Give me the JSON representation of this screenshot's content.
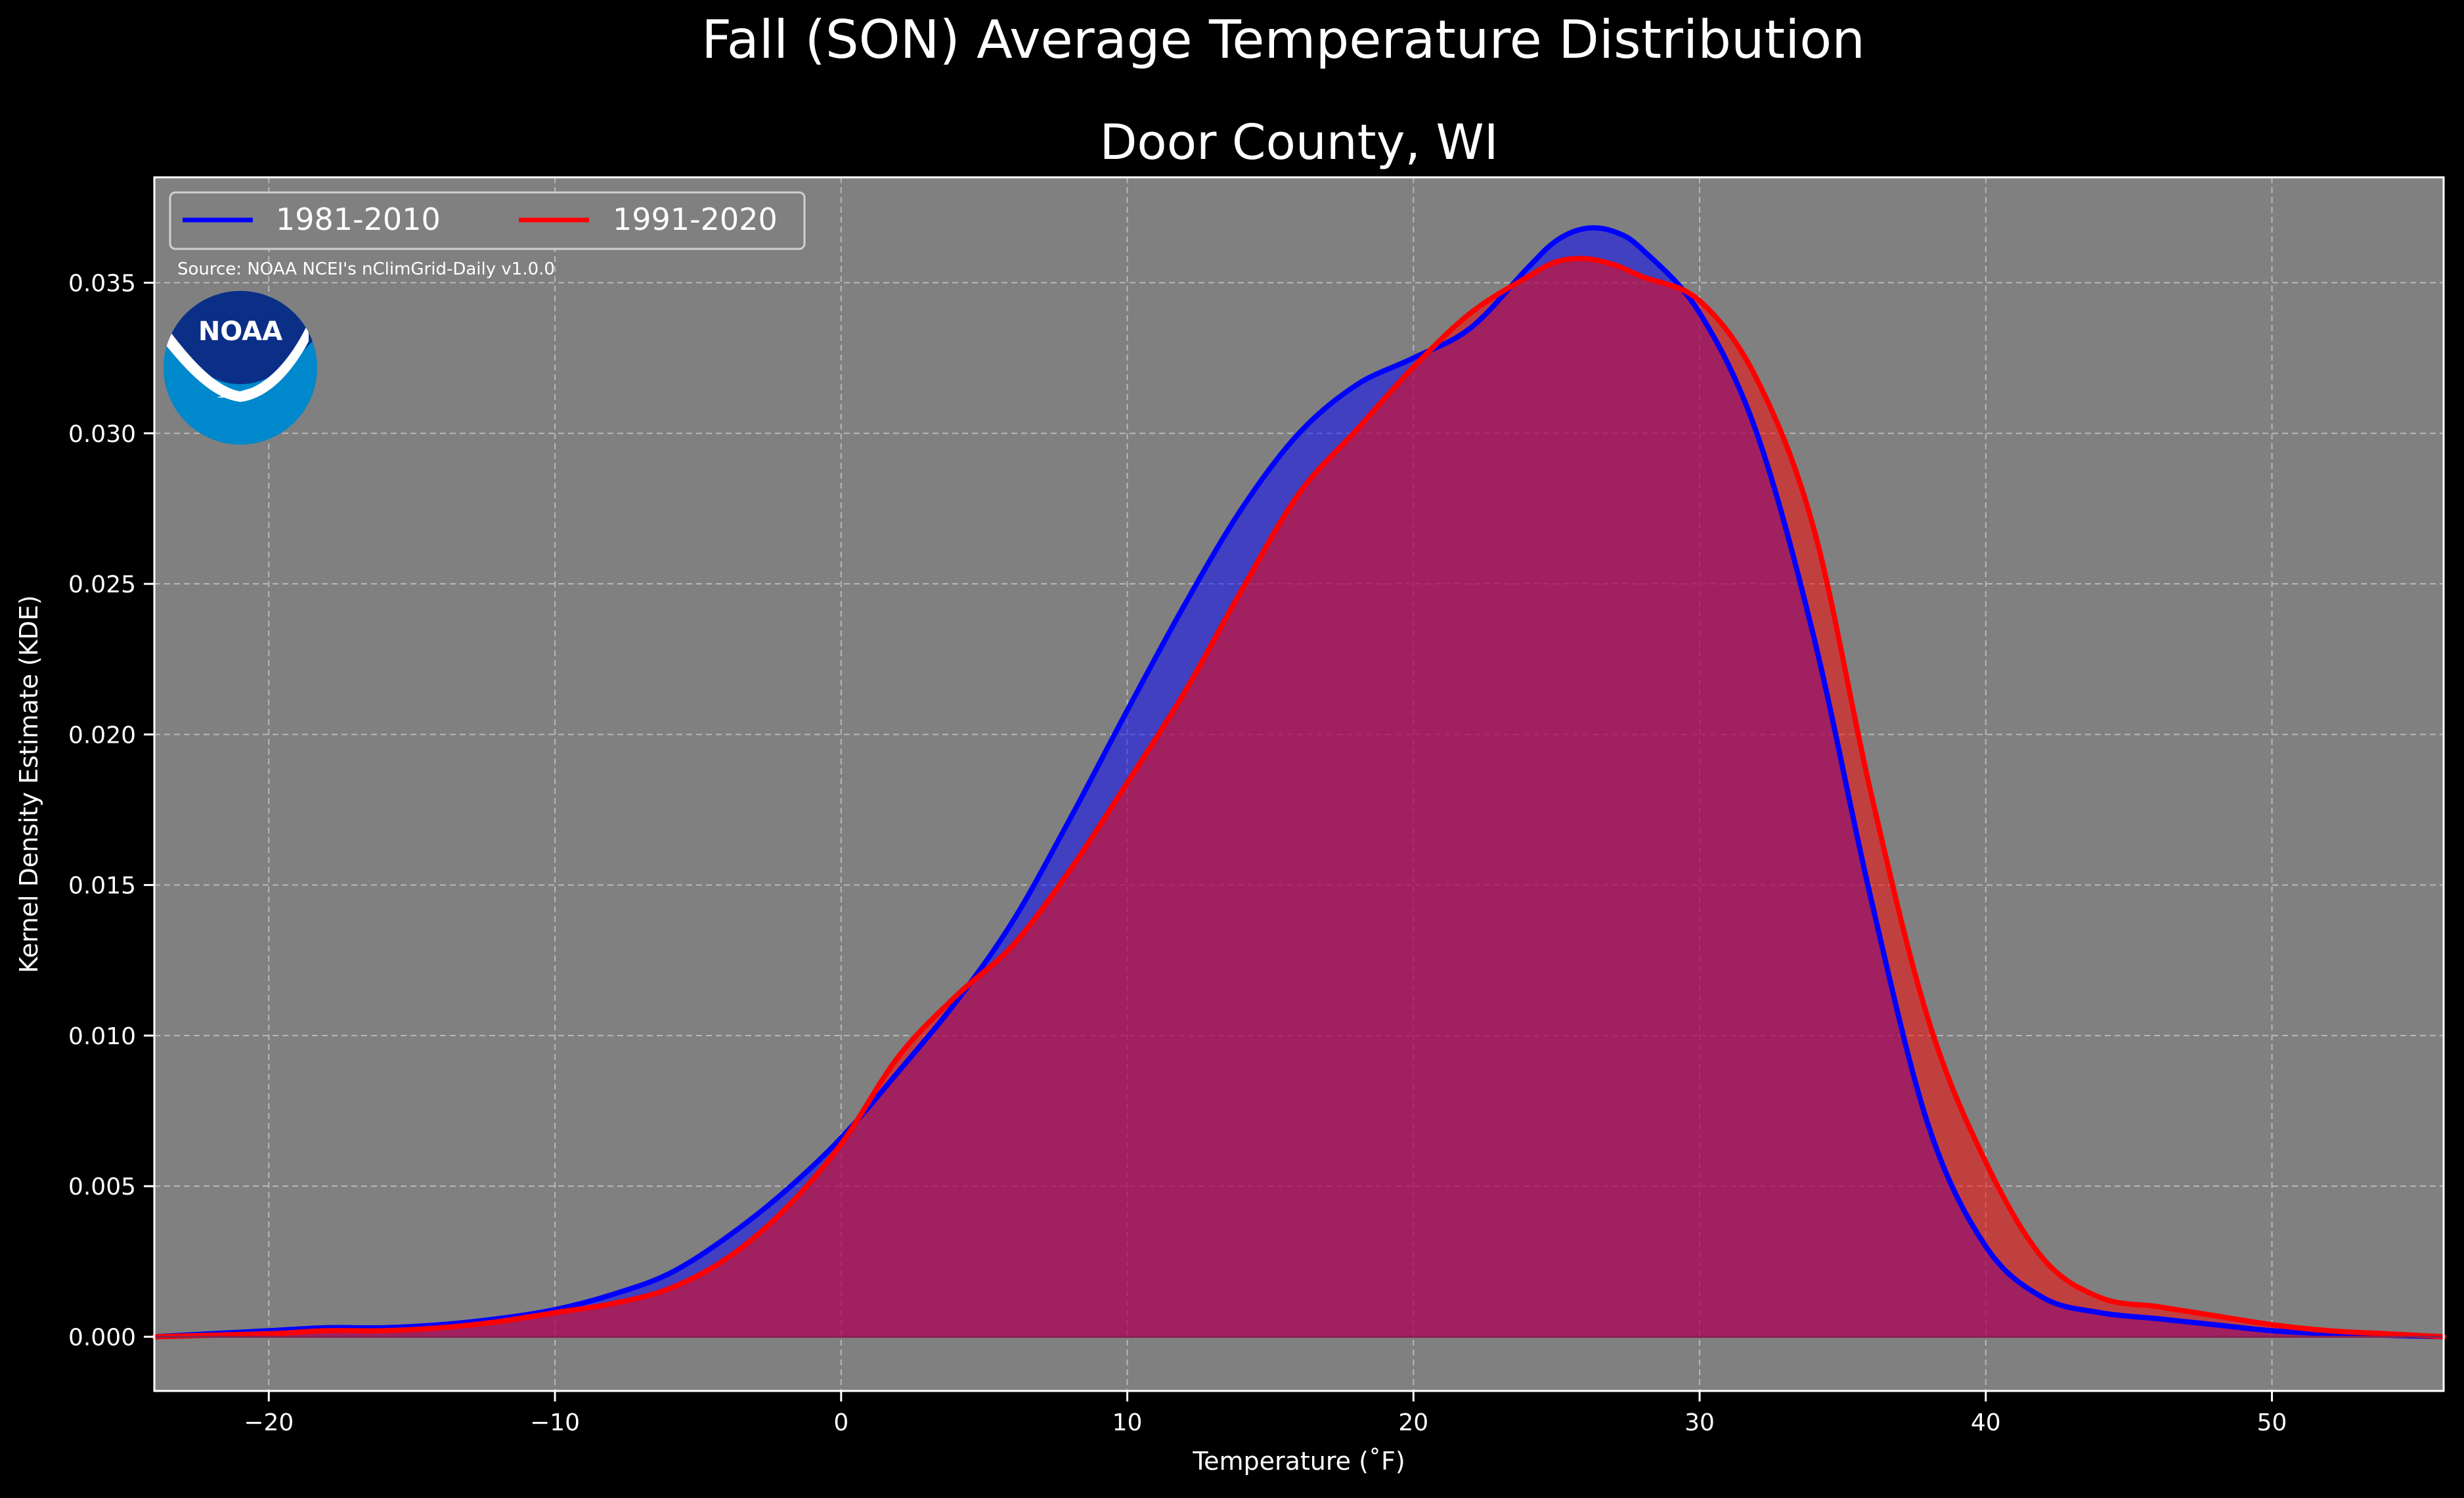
{
  "figure": {
    "suptitle": "Fall (SON) Average Temperature Distribution",
    "subtitle": "Door County, WI",
    "source": "Source: NOAA NCEI's nClimGrid-Daily v1.0.0",
    "logo_text": "NOAA"
  },
  "colors": {
    "background": "#000000",
    "plot_background": "#808080",
    "series_1981_2010": "#0000ff",
    "series_1991_2020": "#ff0000",
    "overlap_fill": "#9e1f5e",
    "logo_dark": "#0b2f87",
    "logo_light": "#0088cc"
  },
  "chart_data": {
    "type": "area",
    "title": "Door County, WI",
    "xlabel": "Temperature (˚F)",
    "ylabel": "Kernel Density Estimate (KDE)",
    "xlim": [
      -24,
      56
    ],
    "ylim": [
      -0.0018,
      0.0385
    ],
    "xticks": [
      -20,
      -10,
      0,
      10,
      20,
      30,
      40,
      50
    ],
    "xtick_labels": [
      "−20",
      "−10",
      "0",
      "10",
      "20",
      "30",
      "40",
      "50"
    ],
    "yticks": [
      0.0,
      0.005,
      0.01,
      0.015,
      0.02,
      0.025,
      0.03,
      0.035
    ],
    "ytick_labels": [
      "0.000",
      "0.005",
      "0.010",
      "0.015",
      "0.020",
      "0.025",
      "0.030",
      "0.035"
    ],
    "grid": true,
    "legend_position": "top-left",
    "series": [
      {
        "name": "1981-2010",
        "color": "#0000ff",
        "x": [
          -24,
          -20,
          -18,
          -16,
          -14,
          -12,
          -10,
          -8,
          -6,
          -4,
          -2,
          0,
          2,
          4,
          6,
          8,
          10,
          12,
          14,
          16,
          18,
          20,
          22,
          24,
          25,
          26,
          27,
          28,
          30,
          32,
          34,
          36,
          38,
          40,
          42,
          44,
          46,
          48,
          50,
          52,
          54,
          56
        ],
        "y": [
          0.0,
          0.0002,
          0.0003,
          0.0003,
          0.0004,
          0.0006,
          0.0009,
          0.0014,
          0.0021,
          0.0033,
          0.0048,
          0.0066,
          0.0088,
          0.0111,
          0.0138,
          0.0172,
          0.0208,
          0.0243,
          0.0275,
          0.03,
          0.0316,
          0.0325,
          0.0335,
          0.0355,
          0.0364,
          0.0368,
          0.0367,
          0.0361,
          0.034,
          0.03,
          0.0232,
          0.0145,
          0.007,
          0.003,
          0.0013,
          0.0008,
          0.0006,
          0.0004,
          0.0002,
          0.0001,
          5e-05,
          0.0
        ]
      },
      {
        "name": "1991-2020",
        "color": "#ff0000",
        "x": [
          -24,
          -20,
          -18,
          -16,
          -14,
          -12,
          -10,
          -8,
          -6,
          -4,
          -2,
          0,
          2,
          4,
          6,
          8,
          10,
          12,
          14,
          16,
          18,
          20,
          22,
          24,
          25,
          26,
          27,
          28,
          30,
          32,
          34,
          36,
          38,
          40,
          42,
          44,
          46,
          48,
          50,
          52,
          54,
          56
        ],
        "y": [
          0.0,
          0.0001,
          0.0002,
          0.0002,
          0.0003,
          0.0005,
          0.0008,
          0.0011,
          0.0016,
          0.0026,
          0.0042,
          0.0064,
          0.0093,
          0.0113,
          0.013,
          0.0155,
          0.0184,
          0.0214,
          0.0248,
          0.028,
          0.0301,
          0.0322,
          0.034,
          0.0352,
          0.0357,
          0.0358,
          0.0356,
          0.0352,
          0.0344,
          0.0318,
          0.0268,
          0.018,
          0.0105,
          0.0058,
          0.0026,
          0.0013,
          0.001,
          0.0007,
          0.0004,
          0.0002,
          0.0001,
          0.0
        ]
      }
    ]
  }
}
